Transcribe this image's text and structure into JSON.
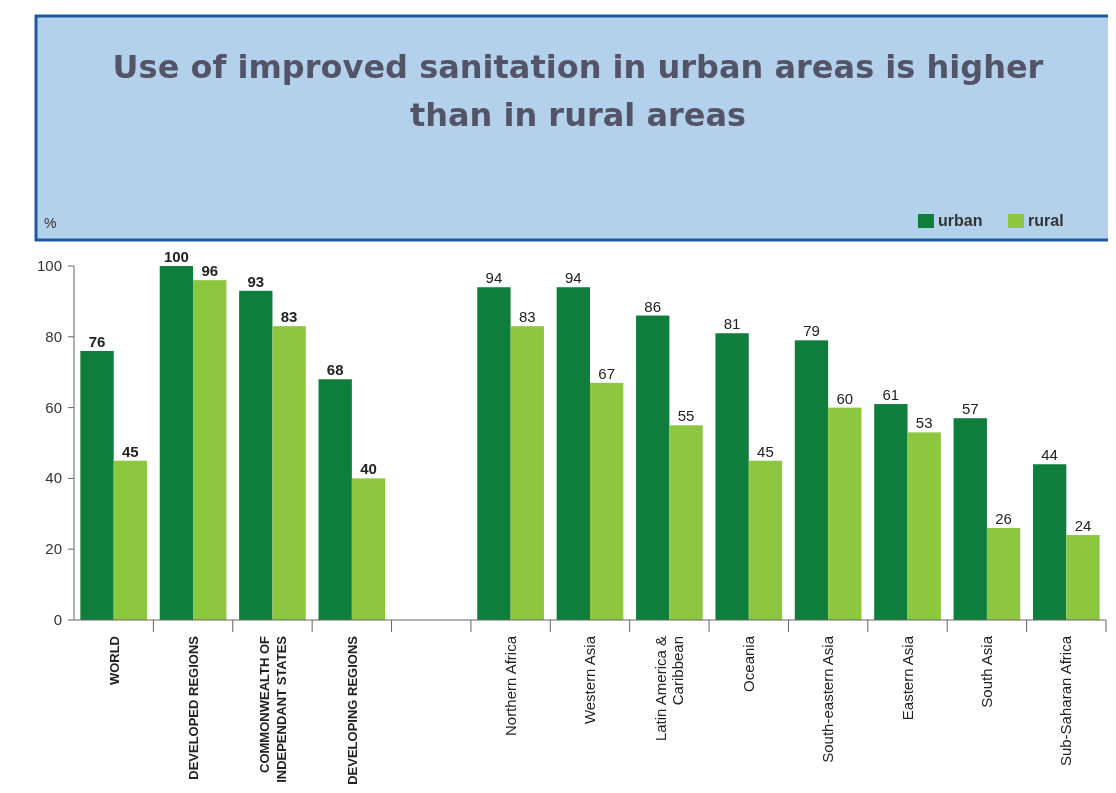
{
  "chart_data": {
    "type": "bar",
    "title": "Use of improved sanitation in urban areas is higher than in rural areas",
    "ylabel": "%",
    "categories": [
      "WORLD",
      "DEVELOPED REGIONS",
      "COMMONWEALTH OF\nINDEPENDANT STATES",
      "DEVELOPING REGIONS",
      null,
      "Northern Africa",
      "Western Asia",
      "Latin America &\nCaribbean",
      "Oceania",
      "South-eastern Asia",
      "Eastern Asia",
      "South Asia",
      "Sub-Saharan Africa"
    ],
    "series": [
      {
        "name": "urban",
        "color": "#0f7d3c",
        "values": [
          76,
          100,
          93,
          68,
          null,
          94,
          94,
          86,
          81,
          79,
          61,
          57,
          44
        ]
      },
      {
        "name": "rural",
        "color": "#8dc63f",
        "values": [
          45,
          96,
          83,
          40,
          null,
          83,
          67,
          55,
          45,
          60,
          53,
          26,
          24
        ]
      }
    ],
    "ylim": [
      0,
      100
    ],
    "yticks": [
      0,
      20,
      40,
      60,
      80,
      100
    ],
    "data_labels": true,
    "legend": "top right"
  }
}
